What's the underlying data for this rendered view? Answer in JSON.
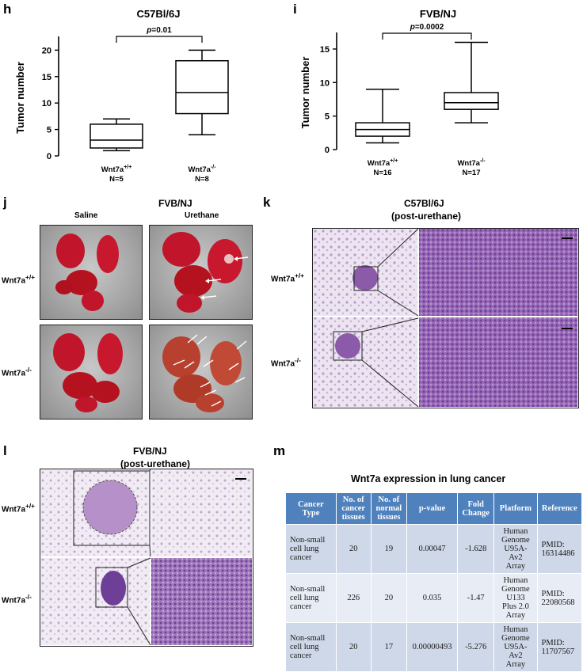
{
  "panels": {
    "h": {
      "label": "h",
      "title": "C57Bl/6J",
      "ylabel": "Tumor number",
      "pvalue_p": "p",
      "pvalue_rest": "=0.01",
      "yticks": [
        "0",
        "5",
        "10",
        "15",
        "20"
      ],
      "groups": [
        {
          "name": "Wnt7a",
          "sup": "+/+",
          "n": "N=5"
        },
        {
          "name": "Wnt7a",
          "sup": "-/-",
          "n": "N=8"
        }
      ]
    },
    "i": {
      "label": "i",
      "title": "FVB/NJ",
      "ylabel": "Tumor number",
      "pvalue_p": "p",
      "pvalue_rest": "=0.0002",
      "yticks": [
        "0",
        "5",
        "10",
        "15"
      ],
      "groups": [
        {
          "name": "Wnt7a",
          "sup": "+/+",
          "n": "N=16"
        },
        {
          "name": "Wnt7a",
          "sup": "-/-",
          "n": "N=17"
        }
      ]
    },
    "j": {
      "label": "j",
      "title": "FVB/NJ",
      "col_saline": "Saline",
      "col_urethane": "Urethane",
      "row_wt": "Wnt7a",
      "row_wt_sup": "+/+",
      "row_ko": "Wnt7a",
      "row_ko_sup": "-/-"
    },
    "k": {
      "label": "k",
      "title1": "C57Bl/6J",
      "title2": "(post-urethane)",
      "row_wt": "Wnt7a",
      "row_wt_sup": "+/+",
      "row_ko": "Wnt7a",
      "row_ko_sup": "-/-"
    },
    "l": {
      "label": "l",
      "title1": "FVB/NJ",
      "title2": "(post-urethane)",
      "row_wt": "Wnt7a",
      "row_wt_sup": "+/+",
      "row_ko": "Wnt7a",
      "row_ko_sup": "-/-"
    },
    "m": {
      "label": "m",
      "title": "Wnt7a expression in lung cancer",
      "headers": [
        "Cancer Type",
        "No. of cancer tissues",
        "No. of normal tissues",
        "p-value",
        "Fold Change",
        "Platform",
        "Reference"
      ],
      "rows": [
        [
          "Non-small cell lung cancer",
          "20",
          "19",
          "0.00047",
          "-1.628",
          "Human Genome U95A-Av2 Array",
          "PMID: 16314486"
        ],
        [
          "Non-small cell lung cancer",
          "226",
          "20",
          "0.035",
          "-1.47",
          "Human Genome U133 Plus 2.0 Array",
          "PMID: 22080568"
        ],
        [
          "Non-small cell lung cancer",
          "20",
          "17",
          "0.00000493",
          "-5.276",
          "Human Genome U95A-Av2 Array",
          "PMID: 11707567"
        ]
      ]
    }
  },
  "chart_data": [
    {
      "type": "box",
      "title": "C57Bl/6J",
      "ylabel": "Tumor number",
      "categories": [
        "Wnt7a+/+ N=5",
        "Wnt7a-/- N=8"
      ],
      "ylim": [
        0,
        22
      ],
      "boxes": [
        {
          "min": 1,
          "q1": 1.5,
          "median": 3,
          "q3": 6,
          "max": 7
        },
        {
          "min": 4,
          "q1": 8,
          "median": 12,
          "q3": 18,
          "max": 20
        }
      ],
      "annotation": "p=0.01"
    },
    {
      "type": "box",
      "title": "FVB/NJ",
      "ylabel": "Tumor number",
      "categories": [
        "Wnt7a+/+ N=16",
        "Wnt7a-/- N=17"
      ],
      "ylim": [
        0,
        17
      ],
      "boxes": [
        {
          "min": 1,
          "q1": 2,
          "median": 3,
          "q3": 4,
          "max": 9
        },
        {
          "min": 4,
          "q1": 6,
          "median": 7,
          "q3": 8.5,
          "max": 16
        }
      ],
      "annotation": "p=0.0002"
    }
  ]
}
